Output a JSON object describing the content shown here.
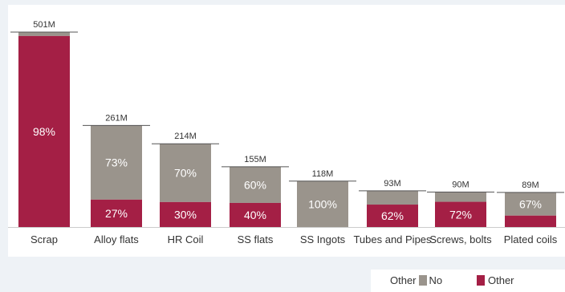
{
  "chart_data": {
    "type": "bar",
    "stacked": true,
    "categories": [
      "Scrap",
      "Alloy flats",
      "HR Coil",
      "SS flats",
      "SS Ingots",
      "Tubes and Pipes",
      "Screws, bolts",
      "Plated coils"
    ],
    "totals": [
      501,
      261,
      214,
      155,
      118,
      93,
      90,
      89
    ],
    "total_labels": [
      "501M",
      "261M",
      "214M",
      "155M",
      "118M",
      "93M",
      "90M",
      "89M"
    ],
    "series": [
      {
        "name": "Other",
        "color": "#a41f45",
        "values_pct": [
          98,
          27,
          30,
          40,
          0,
          62,
          72,
          33
        ],
        "labels": [
          "98%",
          "27%",
          "30%",
          "40%",
          "",
          "62%",
          "72%",
          ""
        ]
      },
      {
        "name": "No",
        "color": "#9a948c",
        "values_pct": [
          2,
          73,
          70,
          60,
          100,
          38,
          28,
          67
        ],
        "labels": [
          "",
          "73%",
          "70%",
          "60%",
          "100%",
          "",
          "",
          "67%"
        ]
      }
    ],
    "ylim": [
      0,
      501
    ]
  },
  "legend": {
    "no_prefix": "Other",
    "no_label": "No",
    "other_label": "Other"
  }
}
